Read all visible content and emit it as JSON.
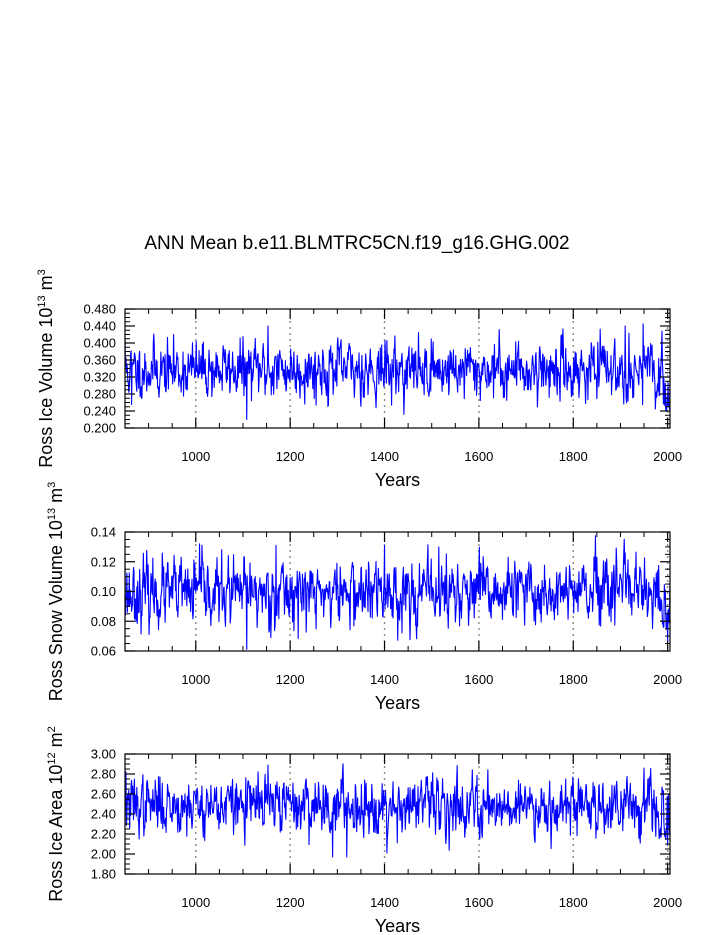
{
  "chart_data": [
    {
      "type": "line",
      "title": "ANN Mean b.e11.BLMTRC5CN.f19_g16.GHG.002",
      "xlabel": "Years",
      "ylabel": {
        "base": "Ross Ice Volume 10",
        "exp": "13",
        "unit": " m",
        "unit_exp": "3"
      },
      "xlim": [
        850,
        2005
      ],
      "ylim": [
        0.2,
        0.48
      ],
      "xticks": [
        1000,
        1200,
        1400,
        1600,
        1800,
        2000
      ],
      "xtick_labels": [
        "1000",
        "1200",
        "1400",
        "1600",
        "1800",
        "2000"
      ],
      "yticks": [
        0.2,
        0.24,
        0.28,
        0.32,
        0.36,
        0.4,
        0.44,
        0.48
      ],
      "ytick_labels": [
        "0.200",
        "0.240",
        "0.280",
        "0.320",
        "0.360",
        "0.400",
        "0.440",
        "0.480"
      ],
      "grid_x": [
        1000,
        1200,
        1400,
        1600,
        1800,
        2000
      ],
      "series": [
        {
          "name": "Ross Ice Volume",
          "color": "#0000ff",
          "mean": 0.337,
          "std": 0.033,
          "end_drop": 0.045,
          "seed": 11,
          "x_start": 850,
          "x_end": 2005,
          "anchors": [
            [
              850,
              0.41
            ],
            [
              851,
              0.345
            ],
            [
              864,
              0.255
            ],
            [
              1108,
              0.22
            ],
            [
              1153,
              0.44
            ],
            [
              1910,
              0.44
            ],
            [
              1948,
              0.445
            ],
            [
              2000,
              0.255
            ]
          ]
        }
      ]
    },
    {
      "type": "line",
      "title": "",
      "xlabel": "Years",
      "ylabel": {
        "base": "Ross Snow Volume 10",
        "exp": "13",
        "unit": " m",
        "unit_exp": "3"
      },
      "xlim": [
        850,
        2005
      ],
      "ylim": [
        0.06,
        0.14
      ],
      "xticks": [
        1000,
        1200,
        1400,
        1600,
        1800,
        2000
      ],
      "xtick_labels": [
        "1000",
        "1200",
        "1400",
        "1600",
        "1800",
        "2000"
      ],
      "yticks": [
        0.06,
        0.08,
        0.1,
        0.12,
        0.14
      ],
      "ytick_labels": [
        "0.06",
        "0.08",
        "0.10",
        "0.12",
        "0.14"
      ],
      "grid_x": [
        1000,
        1200,
        1400,
        1600,
        1800,
        2000
      ],
      "series": [
        {
          "name": "Ross Snow Volume",
          "color": "#0000ff",
          "mean": 0.099,
          "std": 0.011,
          "end_drop": 0.015,
          "seed": 23,
          "x_start": 850,
          "x_end": 2005,
          "anchors": [
            [
              850,
              0.12
            ],
            [
              1008,
              0.132
            ],
            [
              1108,
              0.061
            ],
            [
              1170,
              0.131
            ],
            [
              1400,
              0.131
            ],
            [
              1515,
              0.13
            ],
            [
              2000,
              0.066
            ]
          ]
        }
      ]
    },
    {
      "type": "line",
      "title": "",
      "xlabel": "Years",
      "ylabel": {
        "base": "Ross Ice Area 10",
        "exp": "12",
        "unit": " m",
        "unit_exp": "2"
      },
      "xlim": [
        850,
        2005
      ],
      "ylim": [
        1.8,
        3.0
      ],
      "xticks": [
        1000,
        1200,
        1400,
        1600,
        1800,
        2000
      ],
      "xtick_labels": [
        "1000",
        "1200",
        "1400",
        "1600",
        "1800",
        "2000"
      ],
      "yticks": [
        1.8,
        2.0,
        2.2,
        2.4,
        2.6,
        2.8,
        3.0
      ],
      "ytick_labels": [
        "1.80",
        "2.00",
        "2.20",
        "2.40",
        "2.60",
        "2.80",
        "3.00"
      ],
      "grid_x": [
        1000,
        1200,
        1400,
        1600,
        1800,
        2000
      ],
      "series": [
        {
          "name": "Ross Ice Area",
          "color": "#0000ff",
          "mean": 2.49,
          "std": 0.14,
          "end_drop": 0.2,
          "seed": 37,
          "x_start": 850,
          "x_end": 2005,
          "anchors": [
            [
              852,
              2.82
            ],
            [
              1153,
              2.89
            ],
            [
              1290,
              1.97
            ],
            [
              1320,
              1.97
            ],
            [
              1405,
              2.01
            ],
            [
              1950,
              2.86
            ],
            [
              2000,
              2.09
            ]
          ]
        }
      ]
    }
  ]
}
